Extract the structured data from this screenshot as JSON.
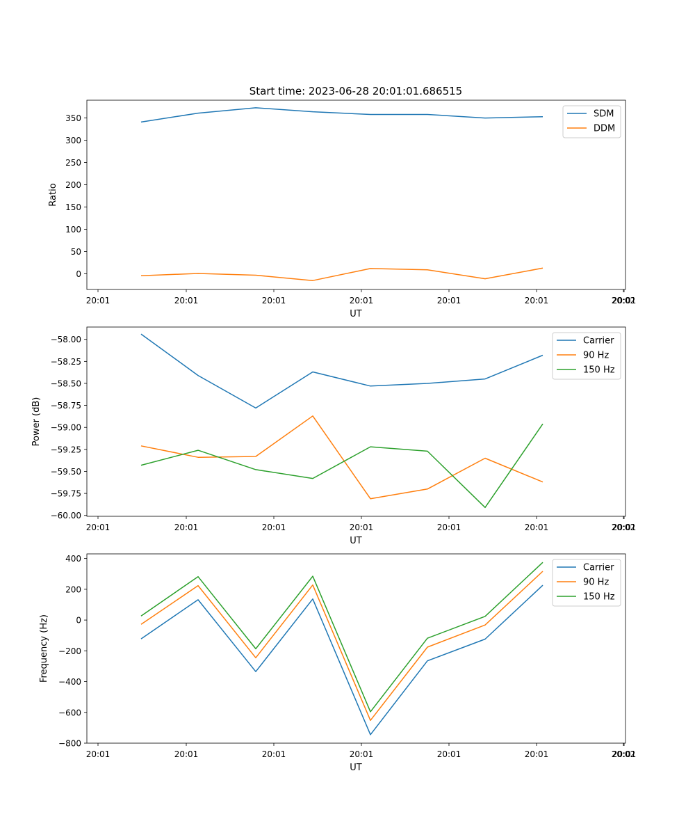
{
  "figure_title": "Start time: 2023-06-28 20:01:01.686515",
  "colors": {
    "c0": "#1f77b4",
    "c1": "#ff7f0e",
    "c2": "#2ca02c"
  },
  "chart_data": [
    {
      "type": "line",
      "title": "Start time: 2023-06-28 20:01:01.686515",
      "xlabel": "UT",
      "ylabel": "Ratio",
      "x_tick_labels": [
        "20:01",
        "20:01",
        "20:01",
        "20:01",
        "20:01",
        "20:01",
        "20:01",
        "20:02"
      ],
      "ylim": [
        -35,
        390
      ],
      "y_ticks": [
        0,
        50,
        100,
        150,
        200,
        250,
        300,
        350
      ],
      "legend_position": "upper-right",
      "grid": false,
      "series": [
        {
          "name": "SDM",
          "color": "#1f77b4",
          "values": [
            341,
            361,
            373,
            364,
            358,
            358,
            350,
            353
          ]
        },
        {
          "name": "DDM",
          "color": "#ff7f0e",
          "values": [
            -4,
            1,
            -3,
            -15,
            12,
            9,
            -11,
            13
          ]
        }
      ]
    },
    {
      "type": "line",
      "title": "",
      "xlabel": "UT",
      "ylabel": "Power (dB)",
      "x_tick_labels": [
        "20:01",
        "20:01",
        "20:01",
        "20:01",
        "20:01",
        "20:01",
        "20:01",
        "20:02"
      ],
      "ylim": [
        -60.01,
        -57.86
      ],
      "y_ticks": [
        -60.0,
        -59.75,
        -59.5,
        -59.25,
        -59.0,
        -58.75,
        -58.5,
        -58.25,
        -58.0
      ],
      "y_tick_labels": [
        "−60.00",
        "−59.75",
        "−59.50",
        "−59.25",
        "−59.00",
        "−58.75",
        "−58.50",
        "−58.25",
        "−58.00"
      ],
      "legend_position": "upper-right",
      "grid": false,
      "series": [
        {
          "name": "Carrier",
          "color": "#1f77b4",
          "values": [
            -57.94,
            -58.41,
            -58.78,
            -58.37,
            -58.53,
            -58.5,
            -58.45,
            -58.18
          ]
        },
        {
          "name": "90 Hz",
          "color": "#ff7f0e",
          "values": [
            -59.21,
            -59.34,
            -59.33,
            -58.87,
            -59.81,
            -59.7,
            -59.35,
            -59.62
          ]
        },
        {
          "name": "150 Hz",
          "color": "#2ca02c",
          "values": [
            -59.43,
            -59.26,
            -59.48,
            -59.58,
            -59.22,
            -59.27,
            -59.91,
            -58.96
          ]
        }
      ]
    },
    {
      "type": "line",
      "title": "",
      "xlabel": "UT",
      "ylabel": "Frequency (Hz)",
      "x_tick_labels": [
        "20:01",
        "20:01",
        "20:01",
        "20:01",
        "20:01",
        "20:01",
        "20:01",
        "20:02"
      ],
      "ylim": [
        -800,
        430
      ],
      "y_ticks": [
        -800,
        -600,
        -400,
        -200,
        0,
        200,
        400
      ],
      "y_tick_labels": [
        "−800",
        "−600",
        "−400",
        "−200",
        "0",
        "200",
        "400"
      ],
      "legend_position": "upper-right",
      "grid": false,
      "series": [
        {
          "name": "Carrier",
          "color": "#1f77b4",
          "values": [
            -122,
            132,
            -335,
            137,
            -745,
            -265,
            -124,
            226
          ]
        },
        {
          "name": "90 Hz",
          "color": "#ff7f0e",
          "values": [
            -28,
            224,
            -245,
            228,
            -652,
            -176,
            -32,
            317
          ]
        },
        {
          "name": "150 Hz",
          "color": "#2ca02c",
          "values": [
            26,
            282,
            -187,
            285,
            -596,
            -118,
            24,
            375
          ]
        }
      ]
    }
  ]
}
